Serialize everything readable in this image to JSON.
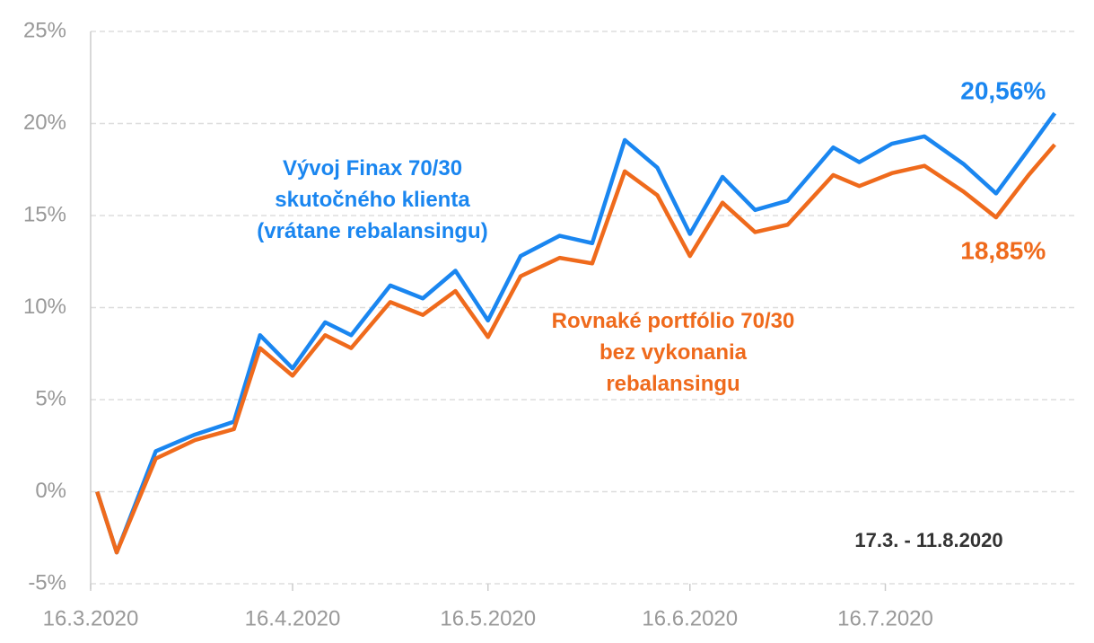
{
  "chart_data": {
    "type": "line",
    "annotation": "17.3. - 11.8.2020",
    "x": [
      "2020-03-17",
      "2020-03-20",
      "2020-03-26",
      "2020-04-01",
      "2020-04-07",
      "2020-04-11",
      "2020-04-16",
      "2020-04-21",
      "2020-04-25",
      "2020-05-01",
      "2020-05-06",
      "2020-05-11",
      "2020-05-16",
      "2020-05-21",
      "2020-05-27",
      "2020-06-01",
      "2020-06-06",
      "2020-06-11",
      "2020-06-16",
      "2020-06-21",
      "2020-06-26",
      "2020-07-01",
      "2020-07-08",
      "2020-07-12",
      "2020-07-17",
      "2020-07-22",
      "2020-07-28",
      "2020-08-02",
      "2020-08-07",
      "2020-08-11"
    ],
    "series": [
      {
        "name": "Vývoj Finax 70/30 skutočného klienta (vrátane rebalansingu)",
        "color": "#1a86f0",
        "values": [
          0,
          -3.3,
          2.2,
          3.1,
          3.8,
          8.5,
          6.7,
          9.2,
          8.5,
          11.2,
          10.5,
          12.0,
          9.3,
          12.8,
          13.9,
          13.5,
          19.1,
          17.6,
          14.0,
          17.1,
          15.3,
          15.8,
          18.7,
          17.9,
          18.9,
          19.3,
          17.8,
          16.2,
          18.6,
          20.56
        ],
        "value_labels": [
          null,
          null,
          null,
          null,
          null,
          null,
          null,
          null,
          null,
          null,
          null,
          null,
          null,
          null,
          null,
          null,
          null,
          null,
          null,
          null,
          null,
          null,
          null,
          null,
          null,
          null,
          null,
          null,
          null,
          "20,56%"
        ]
      },
      {
        "name": "Rovnaké portfólio 70/30 bez vykonania rebalansingu",
        "color": "#ef6a1c",
        "values": [
          0,
          -3.3,
          1.8,
          2.8,
          3.4,
          7.8,
          6.3,
          8.5,
          7.8,
          10.3,
          9.6,
          10.9,
          8.4,
          11.7,
          12.7,
          12.4,
          17.4,
          16.1,
          12.8,
          15.7,
          14.1,
          14.5,
          17.2,
          16.6,
          17.3,
          17.7,
          16.3,
          14.9,
          17.2,
          18.85
        ],
        "value_labels": [
          null,
          null,
          null,
          null,
          null,
          null,
          null,
          null,
          null,
          null,
          null,
          null,
          null,
          null,
          null,
          null,
          null,
          null,
          null,
          null,
          null,
          null,
          null,
          null,
          null,
          null,
          null,
          null,
          null,
          "18,85%"
        ]
      }
    ],
    "xlim": [
      "2020-03-16",
      "2020-08-14"
    ],
    "xticks": [
      {
        "value": "2020-03-16",
        "label": "16.3.2020"
      },
      {
        "value": "2020-04-16",
        "label": "16.4.2020"
      },
      {
        "value": "2020-05-16",
        "label": "16.5.2020"
      },
      {
        "value": "2020-06-16",
        "label": "16.6.2020"
      },
      {
        "value": "2020-07-16",
        "label": "16.7.2020"
      }
    ],
    "ylim": [
      -5,
      25
    ],
    "yticks": [
      {
        "value": -5,
        "label": "-5%"
      },
      {
        "value": 0,
        "label": "0%"
      },
      {
        "value": 5,
        "label": "5%"
      },
      {
        "value": 10,
        "label": "10%"
      },
      {
        "value": 15,
        "label": "15%"
      },
      {
        "value": 20,
        "label": "20%"
      },
      {
        "value": 25,
        "label": "25%"
      }
    ],
    "grid": true
  }
}
